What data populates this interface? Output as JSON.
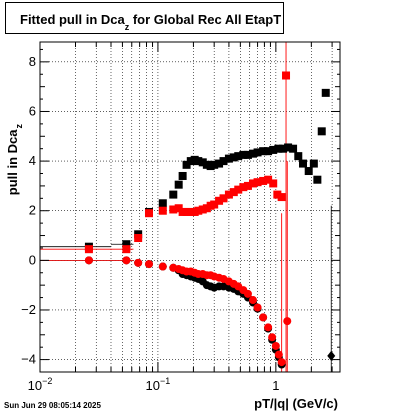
{
  "chart_data": {
    "type": "scatter",
    "title": {
      "pre": "Fitted pull in Dca",
      "sub": "z",
      "post": " for Global Rec All EtapT"
    },
    "xlabel": "pT/|q| (GeV/c)",
    "ylabel": {
      "main": "pull in Dca",
      "sub": "z"
    },
    "xscale": "log",
    "xlim": [
      0.01,
      3.5
    ],
    "ylim": [
      -4.5,
      8.8
    ],
    "grid": true,
    "x_tick_labels": [
      {
        "value": 0.01,
        "base": "10",
        "exp": "−2"
      },
      {
        "value": 0.1,
        "base": "10",
        "exp": "−1"
      },
      {
        "value": 1,
        "base": "1",
        "exp": ""
      }
    ],
    "y_tick_labels": [
      {
        "value": -4,
        "label": "−4"
      },
      {
        "value": -2,
        "label": "−2"
      },
      {
        "value": 0,
        "label": "0"
      },
      {
        "value": 2,
        "label": "2"
      },
      {
        "value": 4,
        "label": "4"
      },
      {
        "value": 6,
        "label": "6"
      },
      {
        "value": 8,
        "label": "8"
      }
    ],
    "series": [
      {
        "color": "#000000",
        "marker": "square",
        "points": [
          {
            "x": 0.026,
            "y": 0.55
          },
          {
            "x": 0.054,
            "y": 0.65
          },
          {
            "x": 0.068,
            "y": 1.05
          },
          {
            "x": 0.084,
            "y": 1.95
          },
          {
            "x": 0.11,
            "y": 2.3
          },
          {
            "x": 0.135,
            "y": 2.65
          },
          {
            "x": 0.15,
            "y": 3.05
          },
          {
            "x": 0.162,
            "y": 3.4
          },
          {
            "x": 0.175,
            "y": 3.85
          },
          {
            "x": 0.19,
            "y": 4.0
          },
          {
            "x": 0.205,
            "y": 4.05
          },
          {
            "x": 0.22,
            "y": 4.0
          },
          {
            "x": 0.24,
            "y": 3.95
          },
          {
            "x": 0.26,
            "y": 3.85
          },
          {
            "x": 0.28,
            "y": 3.8
          },
          {
            "x": 0.3,
            "y": 3.85
          },
          {
            "x": 0.33,
            "y": 3.9
          },
          {
            "x": 0.36,
            "y": 4.0
          },
          {
            "x": 0.4,
            "y": 4.1
          },
          {
            "x": 0.44,
            "y": 4.15
          },
          {
            "x": 0.48,
            "y": 4.2
          },
          {
            "x": 0.53,
            "y": 4.25
          },
          {
            "x": 0.58,
            "y": 4.25
          },
          {
            "x": 0.64,
            "y": 4.3
          },
          {
            "x": 0.7,
            "y": 4.35
          },
          {
            "x": 0.78,
            "y": 4.4
          },
          {
            "x": 0.86,
            "y": 4.4
          },
          {
            "x": 0.95,
            "y": 4.45
          },
          {
            "x": 1.05,
            "y": 4.5
          },
          {
            "x": 1.15,
            "y": 4.5
          },
          {
            "x": 1.27,
            "y": 4.55
          },
          {
            "x": 1.4,
            "y": 4.5
          },
          {
            "x": 1.55,
            "y": 4.2
          },
          {
            "x": 1.7,
            "y": 3.9
          },
          {
            "x": 1.9,
            "y": 3.6
          },
          {
            "x": 2.1,
            "y": 3.9
          },
          {
            "x": 2.25,
            "y": 3.25
          },
          {
            "x": 2.45,
            "y": 5.2
          },
          {
            "x": 2.65,
            "y": 6.75
          }
        ],
        "extra_points": [
          {
            "x": 2.95,
            "y": -3.85,
            "marker": "diamond"
          }
        ]
      },
      {
        "color": "#ff0000",
        "marker": "square",
        "points": [
          {
            "x": 0.026,
            "y": 0.45
          },
          {
            "x": 0.054,
            "y": 0.45
          },
          {
            "x": 0.068,
            "y": 0.9
          },
          {
            "x": 0.084,
            "y": 1.9
          },
          {
            "x": 0.11,
            "y": 2.0
          },
          {
            "x": 0.135,
            "y": 2.05
          },
          {
            "x": 0.15,
            "y": 2.1
          },
          {
            "x": 0.162,
            "y": 1.95
          },
          {
            "x": 0.175,
            "y": 1.95
          },
          {
            "x": 0.19,
            "y": 1.95
          },
          {
            "x": 0.205,
            "y": 1.95
          },
          {
            "x": 0.22,
            "y": 2.0
          },
          {
            "x": 0.24,
            "y": 2.05
          },
          {
            "x": 0.26,
            "y": 2.1
          },
          {
            "x": 0.28,
            "y": 2.2
          },
          {
            "x": 0.3,
            "y": 2.25
          },
          {
            "x": 0.33,
            "y": 2.4
          },
          {
            "x": 0.36,
            "y": 2.5
          },
          {
            "x": 0.4,
            "y": 2.65
          },
          {
            "x": 0.44,
            "y": 2.75
          },
          {
            "x": 0.48,
            "y": 2.85
          },
          {
            "x": 0.53,
            "y": 2.95
          },
          {
            "x": 0.58,
            "y": 3.0
          },
          {
            "x": 0.64,
            "y": 3.1
          },
          {
            "x": 0.7,
            "y": 3.15
          },
          {
            "x": 0.78,
            "y": 3.2
          },
          {
            "x": 0.86,
            "y": 3.25
          },
          {
            "x": 0.95,
            "y": 3.1
          },
          {
            "x": 1.03,
            "y": 2.65
          },
          {
            "x": 1.12,
            "y": 2.55
          },
          {
            "x": 1.22,
            "y": 7.45
          }
        ]
      },
      {
        "color": "#000000",
        "marker": "circle",
        "points": [
          {
            "x": 0.026,
            "y": 0.0
          },
          {
            "x": 0.054,
            "y": 0.0
          },
          {
            "x": 0.068,
            "y": -0.1
          },
          {
            "x": 0.084,
            "y": -0.15
          },
          {
            "x": 0.11,
            "y": -0.25
          },
          {
            "x": 0.135,
            "y": -0.3
          },
          {
            "x": 0.15,
            "y": -0.4
          },
          {
            "x": 0.162,
            "y": -0.55
          },
          {
            "x": 0.175,
            "y": -0.6
          },
          {
            "x": 0.19,
            "y": -0.65
          },
          {
            "x": 0.205,
            "y": -0.7
          },
          {
            "x": 0.22,
            "y": -0.75
          },
          {
            "x": 0.24,
            "y": -0.85
          },
          {
            "x": 0.26,
            "y": -1.0
          },
          {
            "x": 0.28,
            "y": -1.05
          },
          {
            "x": 0.3,
            "y": -1.1
          },
          {
            "x": 0.33,
            "y": -1.05
          },
          {
            "x": 0.36,
            "y": -1.05
          },
          {
            "x": 0.4,
            "y": -1.1
          },
          {
            "x": 0.44,
            "y": -1.15
          },
          {
            "x": 0.48,
            "y": -1.25
          },
          {
            "x": 0.53,
            "y": -1.35
          },
          {
            "x": 0.58,
            "y": -1.5
          },
          {
            "x": 0.64,
            "y": -1.7
          },
          {
            "x": 0.7,
            "y": -1.95
          },
          {
            "x": 0.78,
            "y": -2.3
          },
          {
            "x": 0.86,
            "y": -2.75
          },
          {
            "x": 0.93,
            "y": -3.2
          },
          {
            "x": 1.0,
            "y": -3.6
          },
          {
            "x": 1.06,
            "y": -3.9
          },
          {
            "x": 1.12,
            "y": -4.2
          }
        ]
      },
      {
        "color": "#ff0000",
        "marker": "circle",
        "points": [
          {
            "x": 0.026,
            "y": 0.0
          },
          {
            "x": 0.054,
            "y": 0.0
          },
          {
            "x": 0.068,
            "y": -0.1
          },
          {
            "x": 0.084,
            "y": -0.15
          },
          {
            "x": 0.11,
            "y": -0.25
          },
          {
            "x": 0.135,
            "y": -0.3
          },
          {
            "x": 0.15,
            "y": -0.35
          },
          {
            "x": 0.162,
            "y": -0.4
          },
          {
            "x": 0.175,
            "y": -0.45
          },
          {
            "x": 0.19,
            "y": -0.45
          },
          {
            "x": 0.205,
            "y": -0.5
          },
          {
            "x": 0.22,
            "y": -0.55
          },
          {
            "x": 0.24,
            "y": -0.55
          },
          {
            "x": 0.26,
            "y": -0.6
          },
          {
            "x": 0.28,
            "y": -0.6
          },
          {
            "x": 0.3,
            "y": -0.65
          },
          {
            "x": 0.33,
            "y": -0.7
          },
          {
            "x": 0.36,
            "y": -0.75
          },
          {
            "x": 0.4,
            "y": -0.85
          },
          {
            "x": 0.44,
            "y": -0.95
          },
          {
            "x": 0.48,
            "y": -1.05
          },
          {
            "x": 0.53,
            "y": -1.2
          },
          {
            "x": 0.58,
            "y": -1.35
          },
          {
            "x": 0.64,
            "y": -1.6
          },
          {
            "x": 0.7,
            "y": -1.9
          },
          {
            "x": 0.78,
            "y": -2.3
          },
          {
            "x": 0.86,
            "y": -2.7
          },
          {
            "x": 0.93,
            "y": -3.1
          },
          {
            "x": 1.0,
            "y": -3.45
          },
          {
            "x": 1.06,
            "y": -3.8
          },
          {
            "x": 1.12,
            "y": -4.1
          },
          {
            "x": 1.25,
            "y": -2.45
          }
        ]
      }
    ]
  },
  "timestamp": "Sun Jun 29 08:05:14 2025"
}
